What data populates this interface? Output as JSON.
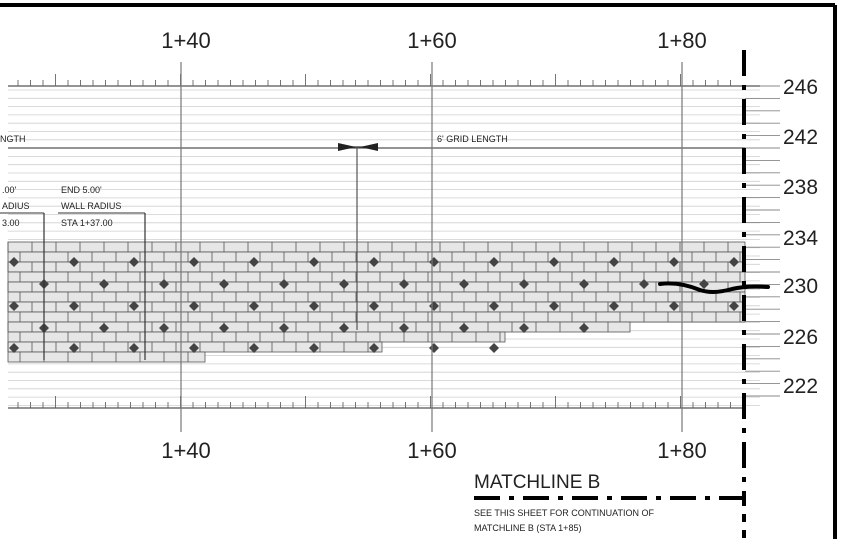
{
  "stations_top": [
    "1+40",
    "1+60",
    "1+80"
  ],
  "stations_bottom": [
    "1+40",
    "1+60",
    "1+80"
  ],
  "elevations": [
    "246",
    "242",
    "238",
    "234",
    "230",
    "226",
    "222"
  ],
  "grid_length_label_left": "NGTH",
  "grid_length_label": "6' GRID LENGTH",
  "start_labels": {
    "line1": ".00'",
    "line2": "ADIUS",
    "line3": "3.00"
  },
  "end_labels": {
    "line1": "END 5.00'",
    "line2": "WALL RADIUS",
    "line3": "STA 1+37.00"
  },
  "matchline_title": "MATCHLINE B",
  "matchline_note_line1": "SEE THIS SHEET FOR CONTINUATION OF",
  "matchline_note_line2": "MATCHLINE B    (STA 1+85)",
  "colors": {
    "ink": "#222222",
    "grid": "#9a9a9a",
    "block": "#e8e8e8",
    "border": "#000000"
  }
}
